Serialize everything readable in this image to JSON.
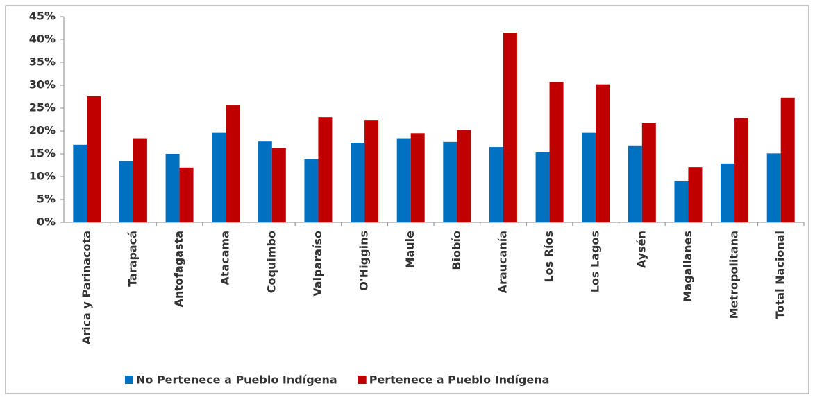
{
  "chart_data": {
    "type": "bar",
    "categories": [
      "Arica y Parinacota",
      "Tarapacá",
      "Antofagasta",
      "Atacama",
      "Coquimbo",
      "Valparaíso",
      "O'Higgins",
      "Maule",
      "Biobío",
      "Araucanía",
      "Los Ríos",
      "Los Lagos",
      "Aysén",
      "Magallanes",
      "Metropolitana",
      "Total Nacional"
    ],
    "series": [
      {
        "name": "No Pertenece a Pueblo Indígena",
        "color": "#0070c0",
        "values": [
          17.0,
          13.4,
          15.0,
          19.6,
          17.7,
          13.8,
          17.4,
          18.4,
          17.6,
          16.5,
          15.3,
          19.6,
          16.7,
          9.1,
          12.9,
          15.1
        ]
      },
      {
        "name": "Pertenece a Pueblo Indígena",
        "color": "#c00000",
        "values": [
          27.6,
          18.4,
          12.0,
          25.6,
          16.3,
          23.0,
          22.4,
          19.5,
          20.2,
          41.5,
          30.7,
          30.2,
          21.8,
          12.1,
          22.8,
          27.3
        ]
      }
    ],
    "ylim": [
      0,
      45
    ],
    "yticks": [
      {
        "value": 0,
        "label": "0%"
      },
      {
        "value": 5,
        "label": "5%"
      },
      {
        "value": 10,
        "label": "10%"
      },
      {
        "value": 15,
        "label": "15%"
      },
      {
        "value": 20,
        "label": "20%"
      },
      {
        "value": 25,
        "label": "25%"
      },
      {
        "value": 30,
        "label": "30%"
      },
      {
        "value": 35,
        "label": "35%"
      },
      {
        "value": 40,
        "label": "40%"
      },
      {
        "value": 45,
        "label": "45%"
      }
    ],
    "grid": false
  }
}
